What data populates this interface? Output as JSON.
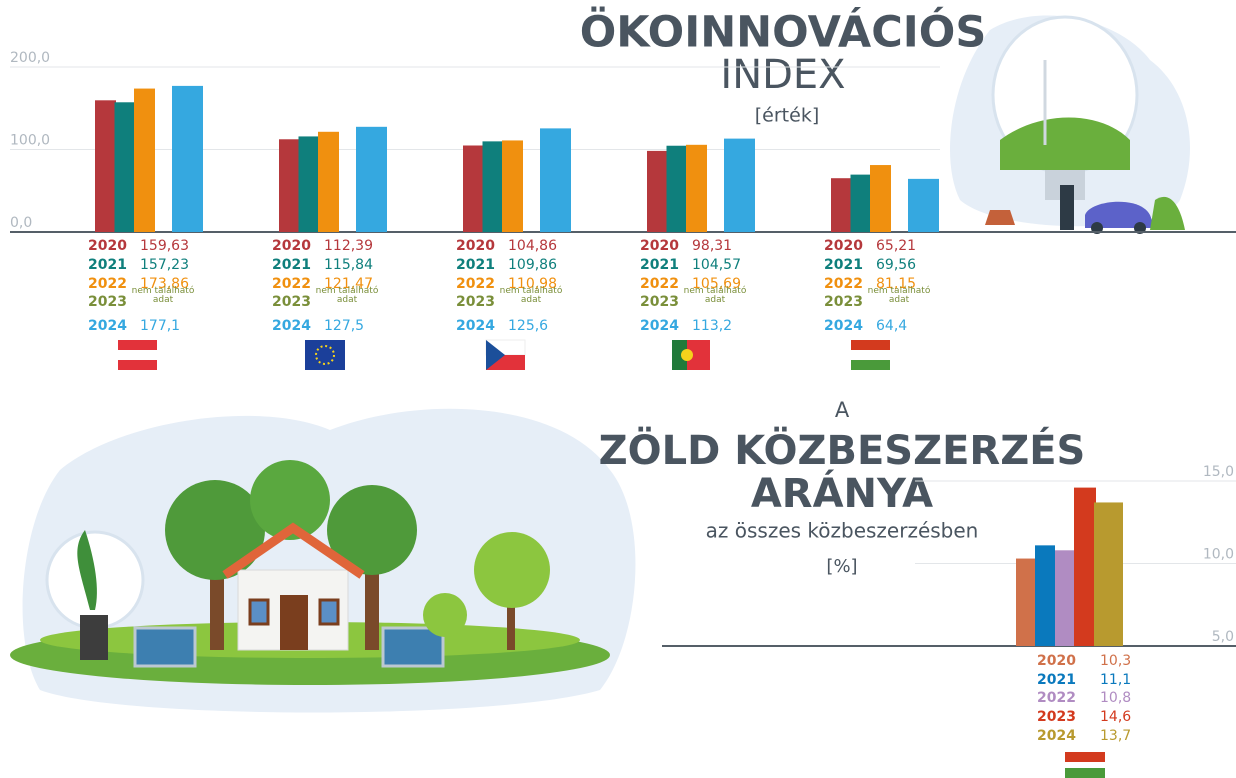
{
  "chart_data": [
    {
      "type": "bar",
      "title": "ÖKOINNOVÁCIÓS",
      "subtitle": "INDEX",
      "y_label": "[érték]",
      "categories": [
        null,
        null,
        null,
        null,
        null
      ],
      "series": [
        {
          "name": "2020",
          "color": "#b5383c",
          "values": [
            159.63,
            112.39,
            104.86,
            98.31,
            65.21
          ],
          "value_labels": [
            "159,63",
            "112,39",
            "104,86",
            "98,31",
            "65,21"
          ]
        },
        {
          "name": "2021",
          "color": "#0f7f7c",
          "values": [
            157.23,
            115.84,
            109.86,
            104.57,
            69.56
          ],
          "value_labels": [
            "157,23",
            "115,84",
            "109,86",
            "104,57",
            "69,56"
          ]
        },
        {
          "name": "2022",
          "color": "#f0900f",
          "values": [
            173.86,
            121.47,
            110.98,
            105.69,
            81.15
          ],
          "value_labels": [
            "173,86",
            "121,47",
            "110,98",
            "105,69",
            "81,15"
          ]
        },
        {
          "name": "2023",
          "color": "#7a8f3a",
          "values": [
            null,
            null,
            null,
            null,
            null
          ],
          "value_labels": [
            "nem található adat",
            "nem található adat",
            "nem található adat",
            "nem található adat",
            "nem található adat"
          ]
        },
        {
          "name": "2024",
          "color": "#35a8e0",
          "values": [
            177.1,
            127.5,
            125.6,
            113.2,
            64.4
          ],
          "value_labels": [
            "177,1",
            "127,5",
            "125,6",
            "113,2",
            "64,4"
          ]
        }
      ],
      "ylim": [
        0,
        200
      ],
      "yticks": [
        {
          "value": 0,
          "label": "0,0"
        },
        {
          "value": 100,
          "label": "100,0"
        },
        {
          "value": 200,
          "label": "200,0"
        }
      ],
      "grid": true
    },
    {
      "type": "bar",
      "title": [
        "A",
        "ZÖLD KÖZBESZERZÉS",
        "ARÁNYA"
      ],
      "subtitle": "az összes közbeszerzésben",
      "y_label": "[%]",
      "categories": [
        "2020",
        "2021",
        "2022",
        "2023",
        "2024"
      ],
      "values": [
        10.3,
        11.1,
        10.8,
        14.6,
        13.7
      ],
      "value_labels": [
        "10,3",
        "11,1",
        "10,8",
        "14,6",
        "13,7"
      ],
      "colors": [
        "#d0714a",
        "#0a79bd",
        "#b08cc2",
        "#d33a1e",
        "#b89a2f"
      ],
      "ylim": [
        5,
        15
      ],
      "yticks": [
        {
          "value": 5,
          "label": "5,0"
        },
        {
          "value": 10,
          "label": "10,0"
        },
        {
          "value": 15,
          "label": "15,0"
        }
      ],
      "grid": true
    }
  ]
}
